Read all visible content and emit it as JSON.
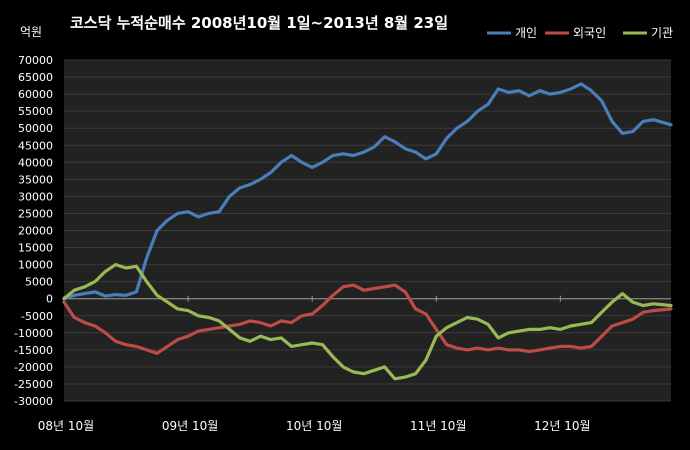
{
  "chart_data": {
    "type": "line",
    "title": "코스닥 누적순매수 2008년10월 1일~2013년 8월 23일",
    "ylabel": "억원",
    "ylim": [
      -30000,
      70000
    ],
    "yticks": [
      70000,
      65000,
      60000,
      55000,
      50000,
      45000,
      40000,
      35000,
      30000,
      25000,
      20000,
      15000,
      10000,
      5000,
      0,
      -5000,
      -10000,
      -15000,
      -20000,
      -25000,
      -30000
    ],
    "ytick_labels": [
      "70000",
      "65000",
      "60000",
      "55000",
      "50000",
      "45000",
      "40000",
      "35000",
      "30000",
      "25000",
      "20000",
      "15000",
      "10000",
      "5000",
      "0",
      "-5000",
      "-10000",
      "-15000",
      "-20000",
      "-25000",
      "-30000"
    ],
    "x_labels": [
      "08년 10월",
      "09년 10월",
      "10년 10월",
      "11년 10월",
      "12년 10월"
    ],
    "x_label_positions": [
      0,
      12,
      24,
      36,
      48
    ],
    "x_range": [
      0,
      58.7
    ],
    "grid": true,
    "legend_position": "top-right",
    "series": [
      {
        "name": "개인",
        "color": "#4a7ebb",
        "points": [
          [
            0,
            0
          ],
          [
            1,
            1000
          ],
          [
            2,
            1500
          ],
          [
            3,
            2000
          ],
          [
            4,
            800
          ],
          [
            5,
            1200
          ],
          [
            6,
            1000
          ],
          [
            7,
            2000
          ],
          [
            8,
            12000
          ],
          [
            9,
            20000
          ],
          [
            10,
            23000
          ],
          [
            11,
            25000
          ],
          [
            12,
            25500
          ],
          [
            13,
            24000
          ],
          [
            14,
            25000
          ],
          [
            15,
            25500
          ],
          [
            16,
            30000
          ],
          [
            17,
            32500
          ],
          [
            18,
            33500
          ],
          [
            19,
            35000
          ],
          [
            20,
            37000
          ],
          [
            21,
            40000
          ],
          [
            22,
            42000
          ],
          [
            23,
            40000
          ],
          [
            24,
            38500
          ],
          [
            25,
            40000
          ],
          [
            26,
            42000
          ],
          [
            27,
            42500
          ],
          [
            28,
            42000
          ],
          [
            29,
            43000
          ],
          [
            30,
            44500
          ],
          [
            31,
            47500
          ],
          [
            32,
            46000
          ],
          [
            33,
            44000
          ],
          [
            34,
            43000
          ],
          [
            35,
            41000
          ],
          [
            36,
            42500
          ],
          [
            37,
            47000
          ],
          [
            38,
            50000
          ],
          [
            39,
            52000
          ],
          [
            40,
            55000
          ],
          [
            41,
            57000
          ],
          [
            42,
            61500
          ],
          [
            43,
            60500
          ],
          [
            44,
            61000
          ],
          [
            45,
            59500
          ],
          [
            46,
            61000
          ],
          [
            47,
            60000
          ],
          [
            48,
            60500
          ],
          [
            49,
            61500
          ],
          [
            50,
            63000
          ],
          [
            51,
            61000
          ],
          [
            52,
            58000
          ],
          [
            53,
            52000
          ],
          [
            54,
            48500
          ],
          [
            55,
            49000
          ],
          [
            56,
            52000
          ],
          [
            57,
            52500
          ],
          [
            58.7,
            51000
          ]
        ]
      },
      {
        "name": "외국인",
        "color": "#be4b48",
        "points": [
          [
            0,
            -1000
          ],
          [
            1,
            -5500
          ],
          [
            2,
            -7000
          ],
          [
            3,
            -8000
          ],
          [
            4,
            -10000
          ],
          [
            5,
            -12500
          ],
          [
            6,
            -13500
          ],
          [
            7,
            -14000
          ],
          [
            8,
            -15000
          ],
          [
            9,
            -16000
          ],
          [
            10,
            -14000
          ],
          [
            11,
            -12000
          ],
          [
            12,
            -11000
          ],
          [
            13,
            -9500
          ],
          [
            14,
            -9000
          ],
          [
            15,
            -8500
          ],
          [
            16,
            -8000
          ],
          [
            17,
            -7500
          ],
          [
            18,
            -6500
          ],
          [
            19,
            -7000
          ],
          [
            20,
            -8000
          ],
          [
            21,
            -6500
          ],
          [
            22,
            -7000
          ],
          [
            23,
            -5000
          ],
          [
            24,
            -4500
          ],
          [
            25,
            -2000
          ],
          [
            26,
            1000
          ],
          [
            27,
            3500
          ],
          [
            28,
            4000
          ],
          [
            29,
            2500
          ],
          [
            30,
            3000
          ],
          [
            31,
            3500
          ],
          [
            32,
            4000
          ],
          [
            33,
            2000
          ],
          [
            34,
            -3000
          ],
          [
            35,
            -4500
          ],
          [
            36,
            -9000
          ],
          [
            37,
            -13500
          ],
          [
            38,
            -14500
          ],
          [
            39,
            -15000
          ],
          [
            40,
            -14500
          ],
          [
            41,
            -15000
          ],
          [
            42,
            -14500
          ],
          [
            43,
            -15000
          ],
          [
            44,
            -15000
          ],
          [
            45,
            -15500
          ],
          [
            46,
            -15000
          ],
          [
            47,
            -14500
          ],
          [
            48,
            -14000
          ],
          [
            49,
            -14000
          ],
          [
            50,
            -14500
          ],
          [
            51,
            -14000
          ],
          [
            52,
            -11000
          ],
          [
            53,
            -8000
          ],
          [
            54,
            -7000
          ],
          [
            55,
            -6000
          ],
          [
            56,
            -4000
          ],
          [
            57,
            -3500
          ],
          [
            58.7,
            -3000
          ]
        ]
      },
      {
        "name": "기관",
        "color": "#98b954",
        "points": [
          [
            0,
            0
          ],
          [
            1,
            2500
          ],
          [
            2,
            3500
          ],
          [
            3,
            5000
          ],
          [
            4,
            8000
          ],
          [
            5,
            10000
          ],
          [
            6,
            9000
          ],
          [
            7,
            9500
          ],
          [
            8,
            5000
          ],
          [
            9,
            1000
          ],
          [
            10,
            -1000
          ],
          [
            11,
            -3000
          ],
          [
            12,
            -3500
          ],
          [
            13,
            -5000
          ],
          [
            14,
            -5500
          ],
          [
            15,
            -6500
          ],
          [
            16,
            -9000
          ],
          [
            17,
            -11500
          ],
          [
            18,
            -12500
          ],
          [
            19,
            -11000
          ],
          [
            20,
            -12000
          ],
          [
            21,
            -11500
          ],
          [
            22,
            -14000
          ],
          [
            23,
            -13500
          ],
          [
            24,
            -13000
          ],
          [
            25,
            -13500
          ],
          [
            26,
            -17000
          ],
          [
            27,
            -20000
          ],
          [
            28,
            -21500
          ],
          [
            29,
            -22000
          ],
          [
            30,
            -21000
          ],
          [
            31,
            -20000
          ],
          [
            32,
            -23500
          ],
          [
            33,
            -23000
          ],
          [
            34,
            -22000
          ],
          [
            35,
            -18000
          ],
          [
            36,
            -11000
          ],
          [
            37,
            -8500
          ],
          [
            38,
            -7000
          ],
          [
            39,
            -5500
          ],
          [
            40,
            -6000
          ],
          [
            41,
            -7500
          ],
          [
            42,
            -11500
          ],
          [
            43,
            -10000
          ],
          [
            44,
            -9500
          ],
          [
            45,
            -9000
          ],
          [
            46,
            -9000
          ],
          [
            47,
            -8500
          ],
          [
            48,
            -9000
          ],
          [
            49,
            -8000
          ],
          [
            50,
            -7500
          ],
          [
            51,
            -7000
          ],
          [
            52,
            -4000
          ],
          [
            53,
            -1000
          ],
          [
            54,
            1500
          ],
          [
            55,
            -1000
          ],
          [
            56,
            -2000
          ],
          [
            57,
            -1500
          ],
          [
            58.7,
            -2000
          ]
        ]
      }
    ]
  }
}
